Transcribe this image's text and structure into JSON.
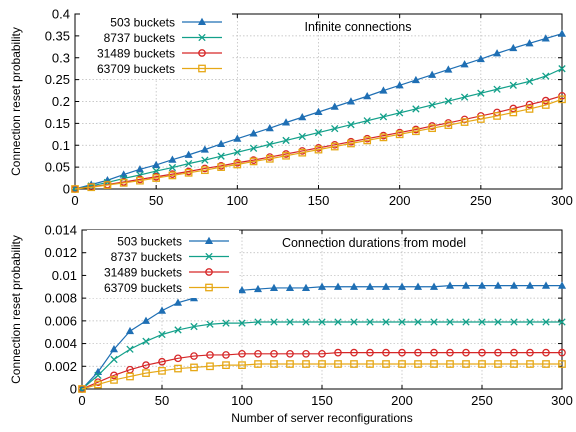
{
  "chart_data": [
    {
      "type": "line",
      "title": "Infinite connections",
      "xlabel": "",
      "ylabel": "Connection reset probability",
      "xlim": [
        0,
        300
      ],
      "ylim": [
        0,
        0.4
      ],
      "xticks": [
        "0",
        "50",
        "100",
        "150",
        "200",
        "250",
        "300"
      ],
      "yticks": [
        "0",
        "0.05",
        "0.1",
        "0.15",
        "0.2",
        "0.25",
        "0.3",
        "0.35",
        "0.4"
      ],
      "grid": true,
      "legend_position": "top-left",
      "x": [
        0,
        10,
        20,
        30,
        40,
        50,
        60,
        70,
        80,
        90,
        100,
        110,
        120,
        130,
        140,
        150,
        160,
        170,
        180,
        190,
        200,
        210,
        220,
        230,
        240,
        250,
        260,
        270,
        280,
        290,
        300
      ],
      "series": [
        {
          "name": "503 buckets",
          "color": "#1f6fb4",
          "marker": "triangle",
          "values": [
            0,
            0.01,
            0.02,
            0.033,
            0.045,
            0.055,
            0.067,
            0.078,
            0.09,
            0.103,
            0.115,
            0.127,
            0.139,
            0.152,
            0.164,
            0.176,
            0.188,
            0.2,
            0.212,
            0.225,
            0.237,
            0.249,
            0.261,
            0.273,
            0.285,
            0.297,
            0.31,
            0.322,
            0.333,
            0.344,
            0.355
          ]
        },
        {
          "name": "8737 buckets",
          "color": "#13a08a",
          "marker": "x",
          "values": [
            0,
            0.007,
            0.015,
            0.024,
            0.032,
            0.041,
            0.049,
            0.058,
            0.066,
            0.075,
            0.084,
            0.093,
            0.102,
            0.111,
            0.12,
            0.129,
            0.138,
            0.147,
            0.156,
            0.165,
            0.174,
            0.183,
            0.192,
            0.201,
            0.21,
            0.219,
            0.228,
            0.237,
            0.246,
            0.258,
            0.275
          ]
        },
        {
          "name": "31489 buckets",
          "color": "#d62728",
          "marker": "circle",
          "values": [
            0,
            0.005,
            0.01,
            0.016,
            0.022,
            0.028,
            0.034,
            0.04,
            0.047,
            0.053,
            0.06,
            0.066,
            0.073,
            0.08,
            0.087,
            0.094,
            0.101,
            0.108,
            0.115,
            0.122,
            0.129,
            0.136,
            0.144,
            0.151,
            0.159,
            0.167,
            0.175,
            0.184,
            0.193,
            0.202,
            0.213
          ]
        },
        {
          "name": "63709 buckets",
          "color": "#e6a817",
          "marker": "square",
          "values": [
            0,
            0.004,
            0.009,
            0.014,
            0.019,
            0.025,
            0.031,
            0.037,
            0.043,
            0.05,
            0.056,
            0.063,
            0.069,
            0.076,
            0.083,
            0.09,
            0.097,
            0.104,
            0.111,
            0.118,
            0.125,
            0.132,
            0.139,
            0.146,
            0.153,
            0.16,
            0.167,
            0.175,
            0.183,
            0.192,
            0.205
          ]
        }
      ]
    },
    {
      "type": "line",
      "title": "Connection durations from model",
      "xlabel": "Number of server reconfigurations",
      "ylabel": "Connection reset probability",
      "xlim": [
        0,
        300
      ],
      "ylim": [
        0,
        0.014
      ],
      "xticks": [
        "0",
        "50",
        "100",
        "150",
        "200",
        "250",
        "300"
      ],
      "yticks": [
        "0",
        "0.002",
        "0.004",
        "0.006",
        "0.008",
        "0.01",
        "0.012",
        "0.014"
      ],
      "grid": true,
      "legend_position": "top-left",
      "x": [
        0,
        10,
        20,
        30,
        40,
        50,
        60,
        70,
        80,
        90,
        100,
        110,
        120,
        130,
        140,
        150,
        160,
        170,
        180,
        190,
        200,
        210,
        220,
        230,
        240,
        250,
        260,
        270,
        280,
        290,
        300
      ],
      "series": [
        {
          "name": "503 buckets",
          "color": "#1f6fb4",
          "marker": "triangle",
          "values": [
            0,
            0.0015,
            0.0035,
            0.0051,
            0.006,
            0.0069,
            0.0076,
            0.008,
            0.0083,
            0.0086,
            0.0087,
            0.0088,
            0.0089,
            0.0089,
            0.0089,
            0.009,
            0.009,
            0.009,
            0.009,
            0.009,
            0.009,
            0.009,
            0.009,
            0.0091,
            0.0091,
            0.0091,
            0.0091,
            0.0091,
            0.0091,
            0.0091,
            0.0091
          ]
        },
        {
          "name": "8737 buckets",
          "color": "#13a08a",
          "marker": "x",
          "values": [
            0,
            0.0012,
            0.0026,
            0.0035,
            0.0042,
            0.0048,
            0.0052,
            0.0055,
            0.0057,
            0.0058,
            0.0058,
            0.0059,
            0.0059,
            0.0059,
            0.0059,
            0.0059,
            0.0059,
            0.0059,
            0.0059,
            0.0059,
            0.0059,
            0.0059,
            0.0059,
            0.0059,
            0.0059,
            0.0059,
            0.0059,
            0.0059,
            0.0059,
            0.0059,
            0.0059
          ]
        },
        {
          "name": "31489 buckets",
          "color": "#d62728",
          "marker": "circle",
          "values": [
            0,
            0.0006,
            0.0012,
            0.0017,
            0.0021,
            0.0024,
            0.0027,
            0.0029,
            0.003,
            0.003,
            0.0031,
            0.0031,
            0.0031,
            0.0031,
            0.0031,
            0.0031,
            0.0032,
            0.0032,
            0.0032,
            0.0032,
            0.0032,
            0.0032,
            0.0032,
            0.0032,
            0.0032,
            0.0032,
            0.0032,
            0.0032,
            0.0032,
            0.0032,
            0.0032
          ]
        },
        {
          "name": "63709 buckets",
          "color": "#e6a817",
          "marker": "square",
          "values": [
            0,
            0.0004,
            0.0008,
            0.0011,
            0.0014,
            0.0016,
            0.0018,
            0.0019,
            0.002,
            0.0021,
            0.0021,
            0.0022,
            0.0022,
            0.0022,
            0.0022,
            0.0022,
            0.0022,
            0.0022,
            0.0022,
            0.0022,
            0.0022,
            0.0022,
            0.0022,
            0.0022,
            0.0022,
            0.0022,
            0.0022,
            0.0022,
            0.0022,
            0.0022,
            0.0022
          ]
        }
      ]
    }
  ]
}
